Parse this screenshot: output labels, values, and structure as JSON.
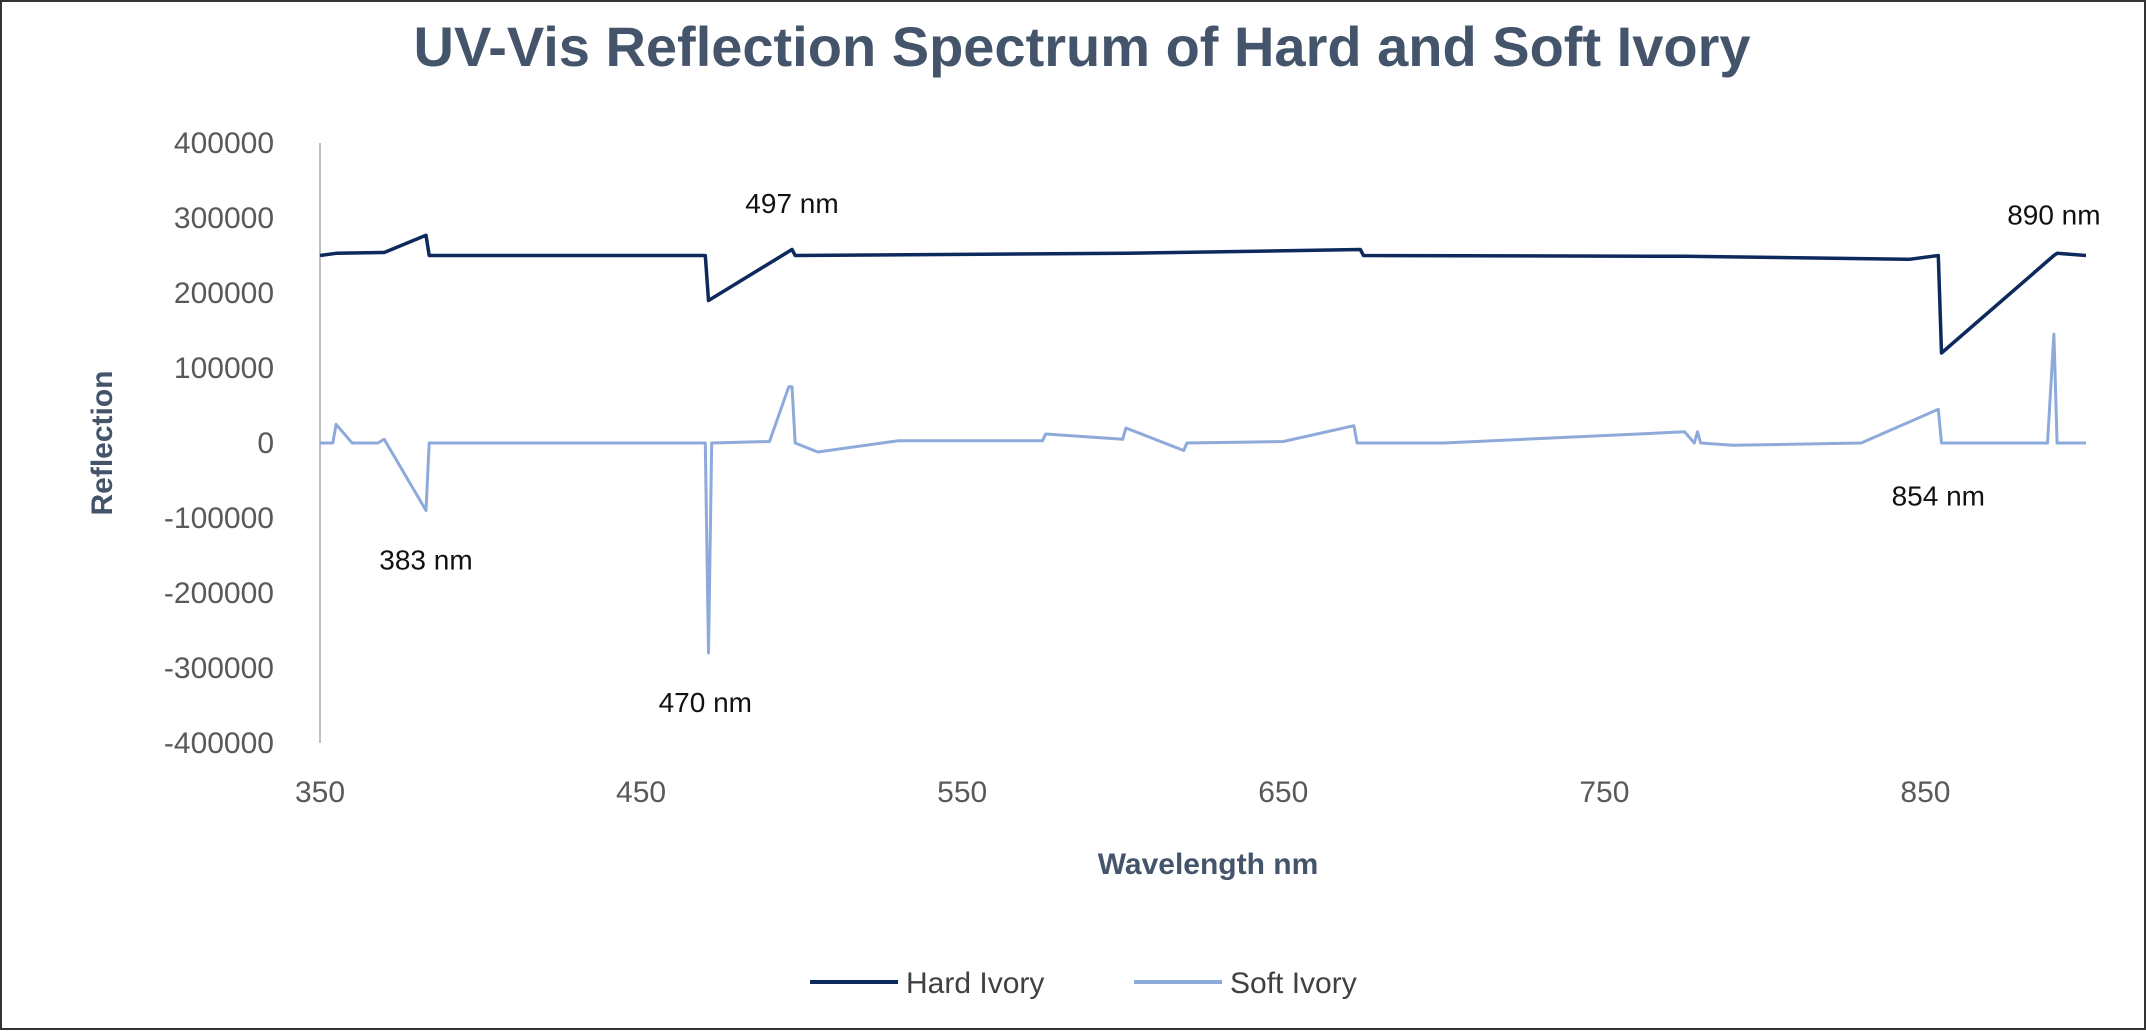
{
  "chart_data": {
    "type": "line",
    "title": "UV-Vis Reflection Spectrum of  Hard and Soft Ivory",
    "xlabel": "Wavelength nm",
    "ylabel": "Reflection",
    "xlim": [
      350,
      900
    ],
    "ylim": [
      -400000,
      400000
    ],
    "x_ticks": [
      "350",
      "450",
      "550",
      "650",
      "750",
      "850"
    ],
    "y_ticks": [
      "400000",
      "300000",
      "200000",
      "100000",
      "0",
      "-100000",
      "-200000",
      "-300000",
      "-400000"
    ],
    "grid": false,
    "legend_position": "bottom",
    "series": [
      {
        "name": "Hard Ivory",
        "color": "#0e2a5c",
        "baseline": 250000,
        "x": [
          350,
          355,
          370,
          383,
          384,
          470,
          471,
          497,
          498,
          601,
          674,
          675,
          775,
          845,
          854,
          855,
          890,
          891,
          900
        ],
        "values": [
          250000,
          253000,
          254000,
          277000,
          250000,
          250000,
          190000,
          258000,
          250000,
          253000,
          258000,
          250000,
          249000,
          245000,
          250000,
          120000,
          250000,
          253000,
          250000
        ]
      },
      {
        "name": "Soft Ivory",
        "color": "#8eaadb",
        "baseline": 0,
        "x": [
          350,
          354,
          355,
          360,
          368,
          370,
          383,
          384,
          470,
          471,
          472,
          490,
          496,
          497,
          498,
          505,
          530,
          575,
          576,
          600,
          601,
          619,
          620,
          650,
          672,
          673,
          700,
          775,
          778,
          779,
          780,
          790,
          830,
          854,
          855,
          860,
          888,
          890,
          891,
          900
        ],
        "values": [
          0,
          0,
          25000,
          0,
          0,
          5000,
          -90000,
          0,
          0,
          -280000,
          0,
          2000,
          75000,
          75000,
          0,
          -12000,
          3000,
          3000,
          12000,
          5000,
          20000,
          -10000,
          0,
          2000,
          23000,
          0,
          0,
          15000,
          0,
          15000,
          0,
          -3000,
          0,
          45000,
          0,
          0,
          0,
          145000,
          0,
          0
        ]
      }
    ],
    "annotations": [
      {
        "text": "383 nm",
        "x": 383,
        "y": -155000
      },
      {
        "text": "470 nm",
        "x": 470,
        "y": -345000
      },
      {
        "text": "497 nm",
        "x": 497,
        "y": 320000
      },
      {
        "text": "854 nm",
        "x": 854,
        "y": -70000
      },
      {
        "text": "890 nm",
        "x": 890,
        "y": 305000
      }
    ]
  }
}
